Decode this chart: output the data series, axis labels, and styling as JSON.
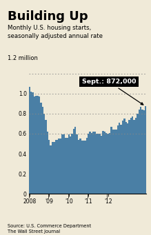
{
  "title": "Building Up",
  "subtitle": "Monthly U.S. housing starts,\nseasonally adjusted annual rate",
  "source": "Source: U.S. Commerce Department\nThe Wall Street Journal",
  "annotation": "Sept.: 872,000",
  "bg_color": "#f0ead8",
  "bar_color": "#4a7fa5",
  "ylim": [
    0,
    1.3
  ],
  "yticks": [
    0,
    0.2,
    0.4,
    0.6,
    0.8,
    1.0
  ],
  "ytick_labels": [
    "0",
    "0.2",
    "0.4",
    "0.6",
    "0.8",
    "1.0"
  ],
  "xtick_labels": [
    "2008",
    "'09",
    "'10",
    "'11",
    "'12"
  ],
  "values": [
    1.07,
    1.02,
    1.01,
    0.97,
    0.98,
    0.98,
    0.97,
    0.91,
    0.87,
    0.8,
    0.74,
    0.62,
    0.54,
    0.48,
    0.52,
    0.52,
    0.54,
    0.54,
    0.55,
    0.55,
    0.59,
    0.59,
    0.56,
    0.56,
    0.59,
    0.57,
    0.6,
    0.65,
    0.67,
    0.59,
    0.54,
    0.55,
    0.53,
    0.53,
    0.53,
    0.56,
    0.6,
    0.62,
    0.61,
    0.62,
    0.62,
    0.6,
    0.6,
    0.6,
    0.58,
    0.63,
    0.62,
    0.61,
    0.6,
    0.61,
    0.67,
    0.64,
    0.64,
    0.64,
    0.68,
    0.71,
    0.69,
    0.73,
    0.75,
    0.72,
    0.7,
    0.74,
    0.76,
    0.77,
    0.74,
    0.76,
    0.8,
    0.84,
    0.87,
    0.84,
    0.83,
    0.872
  ],
  "dotted_lines": [
    0.6,
    0.8,
    1.0,
    1.2
  ]
}
